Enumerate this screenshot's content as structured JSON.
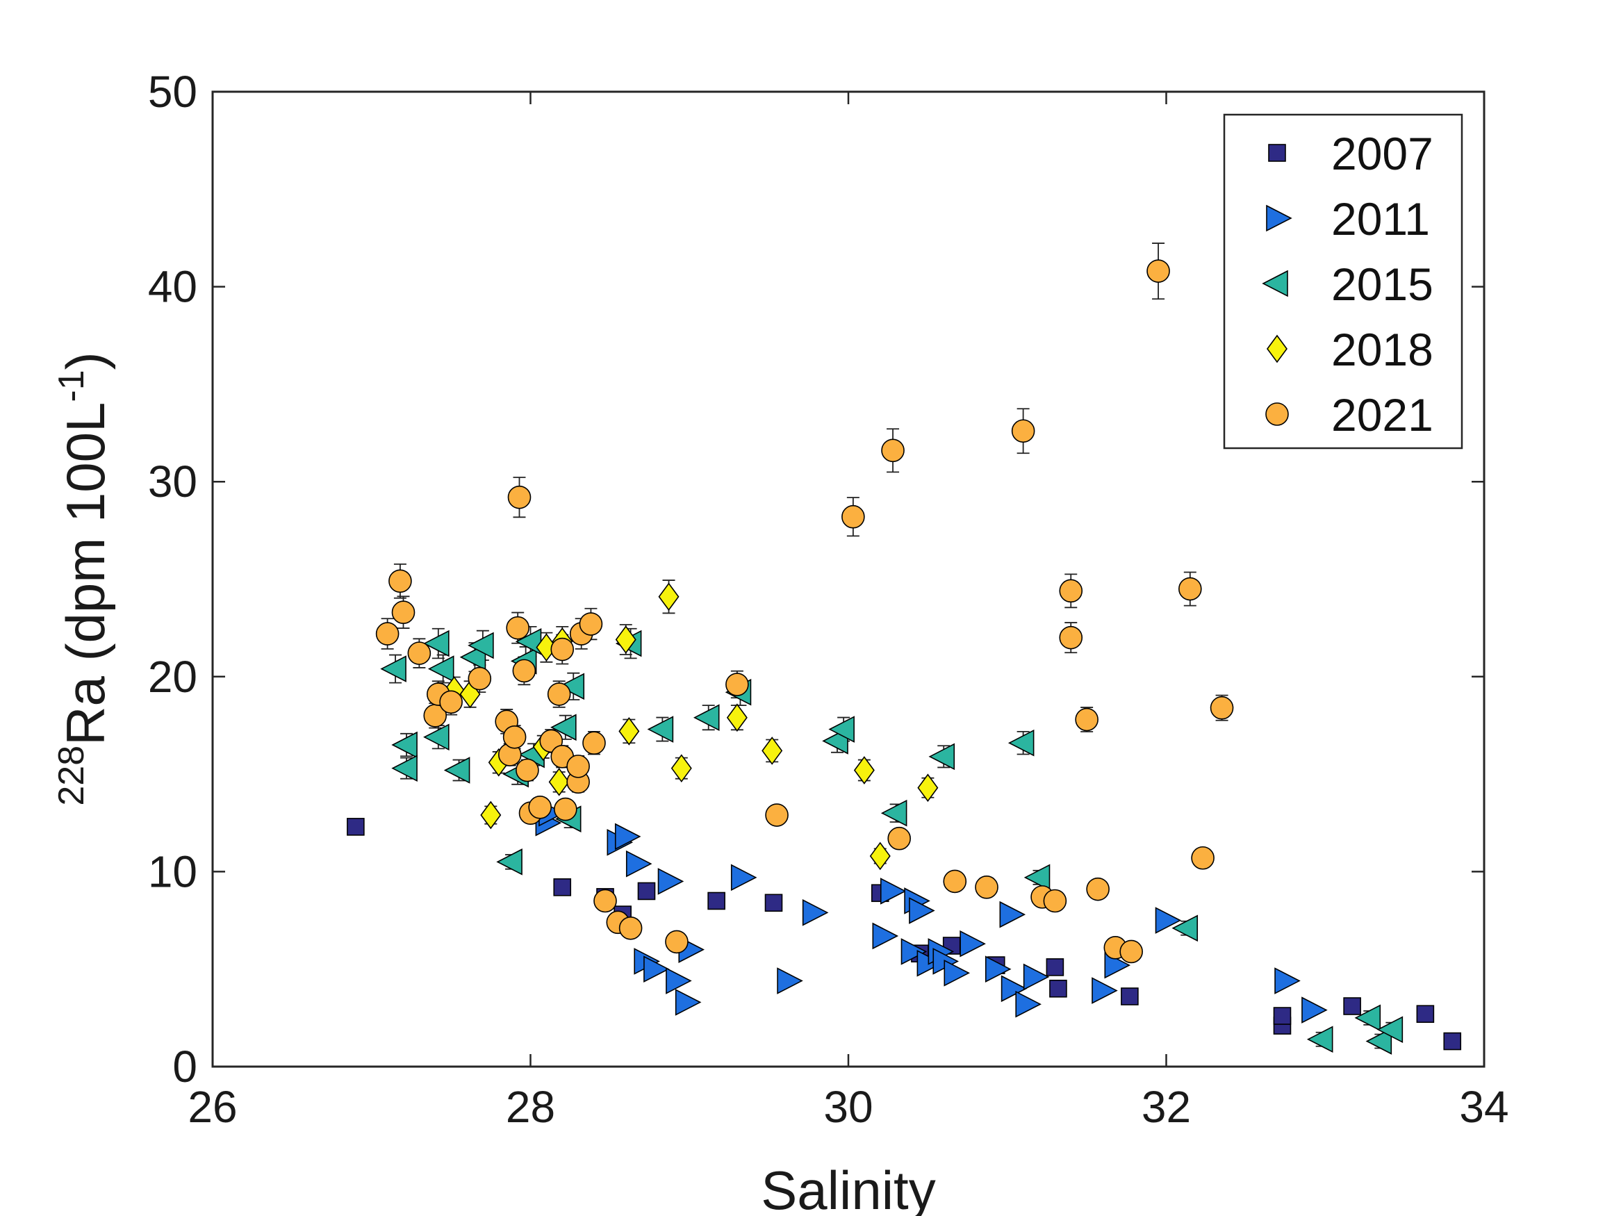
{
  "chart_data": {
    "type": "scatter",
    "xlabel": "Salinity",
    "ylabel_superscript": "228",
    "ylabel_main": "Ra (dpm 100L",
    "ylabel_exp": "-1",
    "ylabel_close": ")",
    "xlim": [
      26,
      34
    ],
    "ylim": [
      0,
      50
    ],
    "x_ticks": [
      26,
      28,
      30,
      32,
      34
    ],
    "y_ticks": [
      0,
      10,
      20,
      30,
      40,
      50
    ],
    "grid": false,
    "legend_position": "top-right",
    "series": [
      {
        "name": "2007",
        "marker": "square",
        "color": "#2e2a85",
        "points": [
          [
            26.9,
            12.3
          ],
          [
            28.2,
            9.2
          ],
          [
            28.47,
            8.7
          ],
          [
            28.58,
            7.8
          ],
          [
            28.73,
            9.0
          ],
          [
            29.17,
            8.5
          ],
          [
            29.53,
            8.4
          ],
          [
            30.2,
            8.9
          ],
          [
            30.45,
            5.8
          ],
          [
            30.65,
            6.2
          ],
          [
            30.93,
            5.2
          ],
          [
            31.3,
            5.1
          ],
          [
            31.32,
            4.0
          ],
          [
            31.77,
            3.6
          ],
          [
            32.73,
            2.1
          ],
          [
            32.73,
            2.6
          ],
          [
            33.17,
            3.1
          ],
          [
            33.63,
            2.7
          ],
          [
            33.8,
            1.3
          ]
        ]
      },
      {
        "name": "2011",
        "marker": "triangle-right",
        "color": "#1e6fe0",
        "points": [
          [
            28.1,
            12.5
          ],
          [
            28.12,
            13.0
          ],
          [
            28.55,
            11.5
          ],
          [
            28.6,
            11.8
          ],
          [
            28.67,
            10.4
          ],
          [
            28.72,
            5.4
          ],
          [
            28.78,
            5.0
          ],
          [
            28.87,
            9.5
          ],
          [
            28.92,
            4.4
          ],
          [
            28.98,
            3.3
          ],
          [
            29.0,
            6.0
          ],
          [
            29.33,
            9.7
          ],
          [
            29.62,
            4.4
          ],
          [
            29.78,
            7.9
          ],
          [
            30.22,
            6.7
          ],
          [
            30.27,
            9.0
          ],
          [
            30.4,
            5.9
          ],
          [
            30.42,
            8.5
          ],
          [
            30.45,
            8.0
          ],
          [
            30.5,
            5.3
          ],
          [
            30.57,
            5.9
          ],
          [
            30.6,
            5.4
          ],
          [
            30.67,
            4.8
          ],
          [
            30.77,
            6.3
          ],
          [
            30.93,
            5.0
          ],
          [
            31.02,
            7.8
          ],
          [
            31.03,
            4.0
          ],
          [
            31.12,
            3.2
          ],
          [
            31.17,
            4.6
          ],
          [
            31.6,
            3.9
          ],
          [
            31.68,
            5.2
          ],
          [
            32.0,
            7.5
          ],
          [
            32.75,
            4.4
          ],
          [
            32.92,
            2.9
          ]
        ]
      },
      {
        "name": "2015",
        "marker": "triangle-left",
        "color": "#2bb5a0",
        "points": [
          [
            27.15,
            20.4
          ],
          [
            27.22,
            16.5
          ],
          [
            27.22,
            15.3
          ],
          [
            27.42,
            21.7
          ],
          [
            27.42,
            16.9
          ],
          [
            27.45,
            20.4
          ],
          [
            27.55,
            15.2
          ],
          [
            27.65,
            21.0
          ],
          [
            27.7,
            21.6
          ],
          [
            27.88,
            10.5
          ],
          [
            27.92,
            15.0
          ],
          [
            27.97,
            20.8
          ],
          [
            28.0,
            21.8
          ],
          [
            28.02,
            16.0
          ],
          [
            28.22,
            17.4
          ],
          [
            28.25,
            12.7
          ],
          [
            28.27,
            19.5
          ],
          [
            28.63,
            21.7
          ],
          [
            28.83,
            17.3
          ],
          [
            29.12,
            17.9
          ],
          [
            29.32,
            19.2
          ],
          [
            29.93,
            16.7
          ],
          [
            29.97,
            17.3
          ],
          [
            30.3,
            13.0
          ],
          [
            30.6,
            15.9
          ],
          [
            31.1,
            16.6
          ],
          [
            31.2,
            9.7
          ],
          [
            32.13,
            7.1
          ],
          [
            32.98,
            1.4
          ],
          [
            33.28,
            2.5
          ],
          [
            33.35,
            1.3
          ],
          [
            33.42,
            1.9
          ]
        ]
      },
      {
        "name": "2018",
        "marker": "diamond",
        "color": "#f7f20d",
        "points": [
          [
            27.52,
            19.3
          ],
          [
            27.62,
            19.1
          ],
          [
            27.75,
            12.9
          ],
          [
            27.8,
            15.6
          ],
          [
            28.08,
            16.4
          ],
          [
            28.1,
            21.5
          ],
          [
            28.18,
            14.6
          ],
          [
            28.2,
            21.8
          ],
          [
            28.6,
            21.9
          ],
          [
            28.62,
            17.2
          ],
          [
            28.87,
            24.1
          ],
          [
            28.95,
            15.3
          ],
          [
            29.3,
            17.9
          ],
          [
            29.52,
            16.2
          ],
          [
            30.1,
            15.2
          ],
          [
            30.2,
            10.8
          ],
          [
            30.5,
            14.3
          ]
        ]
      },
      {
        "name": "2021",
        "marker": "circle",
        "color": "#fbb040",
        "points": [
          [
            27.1,
            22.2
          ],
          [
            27.18,
            24.9
          ],
          [
            27.2,
            23.3
          ],
          [
            27.3,
            21.2
          ],
          [
            27.4,
            18.0
          ],
          [
            27.42,
            19.1
          ],
          [
            27.5,
            18.7
          ],
          [
            27.68,
            19.9
          ],
          [
            27.85,
            17.7
          ],
          [
            27.87,
            16.0
          ],
          [
            27.9,
            16.9
          ],
          [
            27.92,
            22.5
          ],
          [
            27.93,
            29.2
          ],
          [
            27.96,
            20.3
          ],
          [
            27.98,
            15.2
          ],
          [
            28.0,
            13.0
          ],
          [
            28.06,
            13.3
          ],
          [
            28.13,
            16.7
          ],
          [
            28.18,
            19.1
          ],
          [
            28.2,
            15.9
          ],
          [
            28.2,
            21.4
          ],
          [
            28.22,
            13.2
          ],
          [
            28.3,
            14.6
          ],
          [
            28.3,
            15.4
          ],
          [
            28.32,
            22.2
          ],
          [
            28.38,
            22.7
          ],
          [
            28.4,
            16.6
          ],
          [
            28.47,
            8.5
          ],
          [
            28.55,
            7.4
          ],
          [
            28.63,
            7.1
          ],
          [
            28.92,
            6.4
          ],
          [
            29.3,
            19.6
          ],
          [
            29.55,
            12.9
          ],
          [
            30.03,
            28.2
          ],
          [
            30.28,
            31.6
          ],
          [
            30.32,
            11.7
          ],
          [
            30.67,
            9.5
          ],
          [
            30.87,
            9.2
          ],
          [
            31.1,
            32.6
          ],
          [
            31.22,
            8.7
          ],
          [
            31.3,
            8.5
          ],
          [
            31.4,
            24.4
          ],
          [
            31.4,
            22.0
          ],
          [
            31.5,
            17.8
          ],
          [
            31.57,
            9.1
          ],
          [
            31.68,
            6.1
          ],
          [
            31.78,
            5.9
          ],
          [
            31.95,
            40.8
          ],
          [
            32.15,
            24.5
          ],
          [
            32.23,
            10.7
          ],
          [
            32.35,
            18.4
          ]
        ]
      }
    ]
  }
}
